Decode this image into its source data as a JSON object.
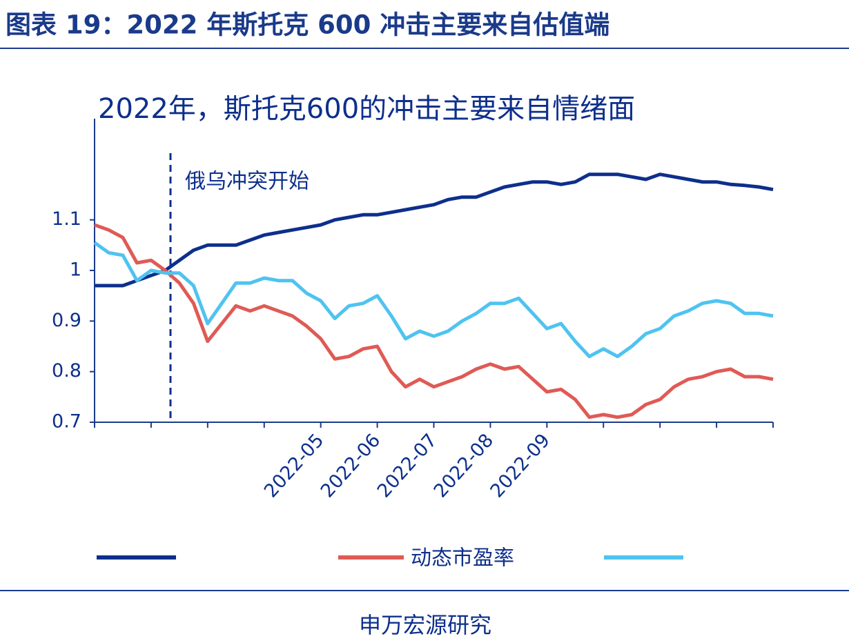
{
  "header": {
    "title": "图表 19：2022 年斯托克 600 冲击主要来自估值端"
  },
  "chart_data": {
    "type": "line",
    "title": "2022年，斯托克600的冲击主要来自情绪面",
    "annotation": "俄乌冲突开始",
    "categories": [
      null,
      null,
      null,
      null,
      null,
      null,
      null,
      null,
      null,
      null,
      null,
      null,
      null,
      null,
      null,
      null,
      "2022-05",
      null,
      null,
      null,
      "2022-06",
      null,
      null,
      null,
      "2022-07",
      null,
      null,
      null,
      "2022-08",
      null,
      null,
      null,
      "2022-09",
      null,
      null,
      null,
      null,
      null,
      null,
      null,
      null,
      null,
      null,
      null,
      null,
      null,
      null,
      null,
      null
    ],
    "series": [
      {
        "color": "#0d2f8c",
        "values": [
          0.97,
          0.97,
          0.97,
          0.98,
          0.99,
          1.0,
          1.02,
          1.04,
          1.05,
          1.05,
          1.05,
          1.06,
          1.07,
          1.075,
          1.08,
          1.085,
          1.09,
          1.1,
          1.105,
          1.11,
          1.11,
          1.115,
          1.12,
          1.125,
          1.13,
          1.14,
          1.145,
          1.145,
          1.155,
          1.165,
          1.17,
          1.175,
          1.175,
          1.17,
          1.175,
          1.19,
          1.19,
          1.19,
          1.185,
          1.18,
          1.19,
          1.185,
          1.18,
          1.175,
          1.175,
          1.17,
          1.168,
          1.165,
          1.16
        ]
      },
      {
        "name": "动态市盈率",
        "color": "#e05a55",
        "values": [
          1.09,
          1.08,
          1.065,
          1.015,
          1.02,
          1.0,
          0.975,
          0.935,
          0.86,
          0.895,
          0.93,
          0.92,
          0.93,
          0.92,
          0.91,
          0.89,
          0.865,
          0.825,
          0.83,
          0.845,
          0.85,
          0.8,
          0.77,
          0.785,
          0.77,
          0.78,
          0.79,
          0.805,
          0.815,
          0.805,
          0.81,
          0.785,
          0.76,
          0.765,
          0.745,
          0.71,
          0.715,
          0.71,
          0.715,
          0.735,
          0.745,
          0.77,
          0.785,
          0.79,
          0.8,
          0.805,
          0.79,
          0.79,
          0.785
        ]
      },
      {
        "color": "#4fc3f0",
        "values": [
          1.055,
          1.035,
          1.03,
          0.98,
          1.0,
          0.995,
          0.995,
          0.97,
          0.895,
          0.935,
          0.975,
          0.975,
          0.985,
          0.98,
          0.98,
          0.955,
          0.94,
          0.905,
          0.93,
          0.935,
          0.95,
          0.91,
          0.865,
          0.88,
          0.87,
          0.88,
          0.9,
          0.915,
          0.935,
          0.935,
          0.945,
          0.915,
          0.885,
          0.895,
          0.86,
          0.83,
          0.845,
          0.83,
          0.85,
          0.875,
          0.885,
          0.91,
          0.92,
          0.935,
          0.94,
          0.935,
          0.915,
          0.915,
          0.91
        ]
      }
    ],
    "ylim": [
      0.7,
      1.3
    ],
    "yticks": [
      0.7,
      0.8,
      0.9,
      1.0,
      1.1
    ]
  },
  "source": "申万宏源研究"
}
